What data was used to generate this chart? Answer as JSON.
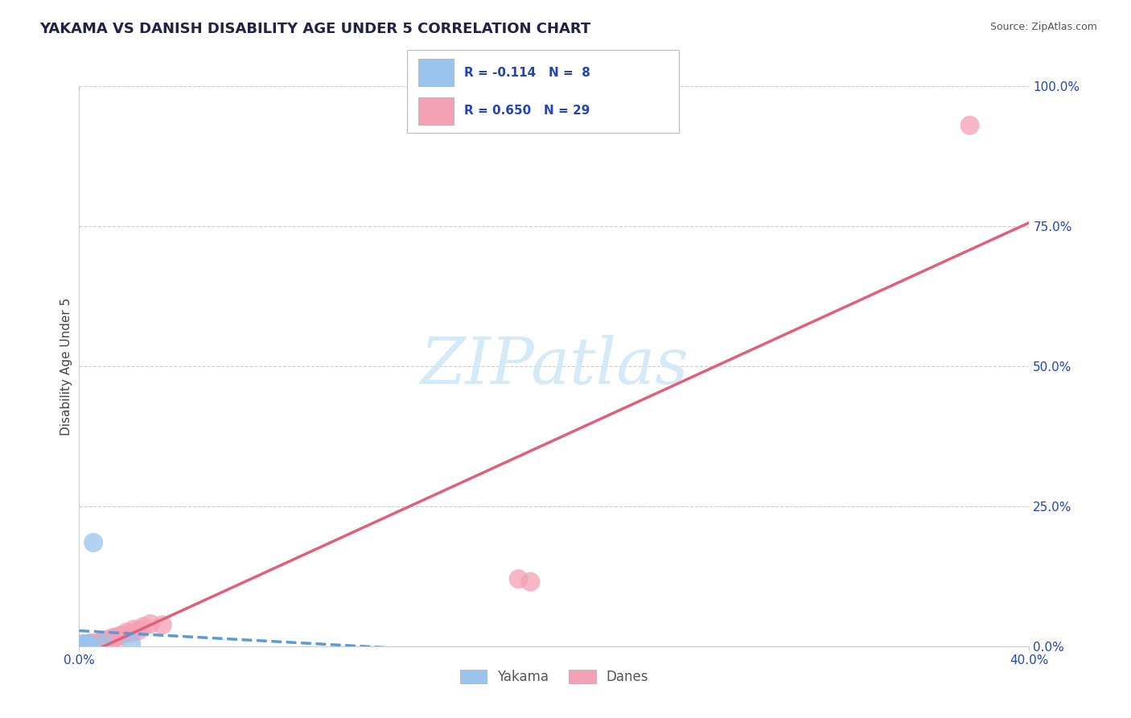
{
  "title": "YAKAMA VS DANISH DISABILITY AGE UNDER 5 CORRELATION CHART",
  "source": "Source: ZipAtlas.com",
  "ylabel": "Disability Age Under 5",
  "xlim": [
    0.0,
    0.4
  ],
  "ylim": [
    0.0,
    1.0
  ],
  "yticks_right": [
    0.0,
    0.25,
    0.5,
    0.75,
    1.0
  ],
  "ytick_labels_right": [
    "0.0%",
    "25.0%",
    "50.0%",
    "75.0%",
    "100.0%"
  ],
  "grid_color": "#cccccc",
  "yakama_color": "#99c4ee",
  "danes_color": "#f4a0b5",
  "yakama_line_color": "#5b9bd5",
  "danes_line_color": "#e0607a",
  "background_color": "#ffffff",
  "watermark_color": "#d0e8f8",
  "title_fontsize": 13,
  "axis_label_fontsize": 11,
  "tick_fontsize": 11,
  "legend_text_color": "#2244bb",
  "axis_text_color": "#2244bb",
  "title_color": "#222244",
  "source_color": "#555555",
  "yakama_x": [
    0.001,
    0.002,
    0.003,
    0.004,
    0.004,
    0.006,
    0.01,
    0.022
  ],
  "yakama_y": [
    0.004,
    0.002,
    0.004,
    0.003,
    0.003,
    0.185,
    0.004,
    0.004
  ],
  "danes_x": [
    0.001,
    0.002,
    0.003,
    0.003,
    0.004,
    0.005,
    0.005,
    0.006,
    0.007,
    0.008,
    0.009,
    0.01,
    0.011,
    0.012,
    0.013,
    0.014,
    0.015,
    0.016,
    0.018,
    0.02,
    0.022,
    0.023,
    0.025,
    0.027,
    0.03,
    0.035,
    0.185,
    0.19,
    0.375
  ],
  "danes_y": [
    0.002,
    0.003,
    0.002,
    0.004,
    0.003,
    0.004,
    0.006,
    0.003,
    0.005,
    0.006,
    0.007,
    0.008,
    0.01,
    0.012,
    0.01,
    0.015,
    0.014,
    0.017,
    0.02,
    0.025,
    0.023,
    0.03,
    0.028,
    0.035,
    0.04,
    0.038,
    0.12,
    0.115,
    0.93
  ]
}
